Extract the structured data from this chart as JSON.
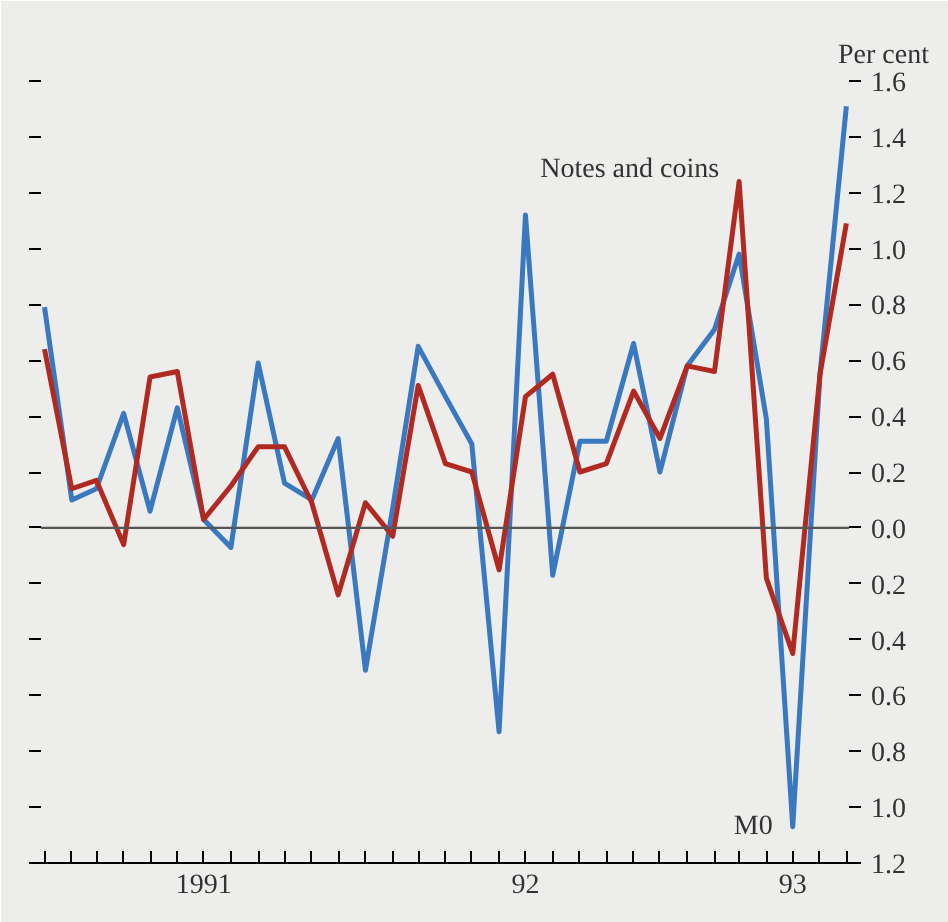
{
  "chart_data": {
    "type": "line",
    "ylabel": "Per cent",
    "x": [
      "1991-01",
      "1991-02",
      "1991-03",
      "1991-04",
      "1991-05",
      "1991-06",
      "1991-07",
      "1991-08",
      "1991-09",
      "1991-10",
      "1991-11",
      "1991-12",
      "1992-01",
      "1992-02",
      "1992-03",
      "1992-04",
      "1992-05",
      "1992-06",
      "1992-07",
      "1992-08",
      "1992-09",
      "1992-10",
      "1992-11",
      "1992-12",
      "1993-01",
      "1993-02",
      "1993-03",
      "1993-04",
      "1993-05",
      "1993-06",
      "1993-07"
    ],
    "series": [
      {
        "name": "M0",
        "color": "#3a78c0",
        "values": [
          0.79,
          0.1,
          0.14,
          0.41,
          0.06,
          0.43,
          0.03,
          -0.07,
          0.59,
          0.16,
          0.1,
          0.32,
          -0.51,
          0.07,
          0.65,
          0.47,
          0.3,
          -0.73,
          1.12,
          -0.17,
          0.31,
          0.31,
          0.66,
          0.2,
          0.58,
          0.71,
          0.98,
          0.39,
          -1.07,
          0.55,
          1.51
        ]
      },
      {
        "name": "Notes and coins",
        "color": "#b02a22",
        "values": [
          0.64,
          0.14,
          0.17,
          -0.06,
          0.54,
          0.56,
          0.03,
          0.15,
          0.29,
          0.29,
          0.09,
          -0.24,
          0.09,
          -0.03,
          0.51,
          0.23,
          0.2,
          -0.15,
          0.47,
          0.55,
          0.2,
          0.23,
          0.49,
          0.32,
          0.58,
          0.56,
          1.24,
          -0.18,
          -0.45,
          0.55,
          1.09
        ]
      }
    ],
    "ref_lines": [
      {
        "axis": "y",
        "value": 0,
        "color": "#555555"
      }
    ],
    "xlim": [
      "1990-12-28",
      "1993-07-04"
    ],
    "xticks": [
      {
        "value": "1991-01",
        "label": null
      },
      {
        "value": "1991-02",
        "label": null
      },
      {
        "value": "1991-03",
        "label": null
      },
      {
        "value": "1991-04",
        "label": null
      },
      {
        "value": "1991-05",
        "label": null
      },
      {
        "value": "1991-06",
        "label": null
      },
      {
        "value": "1991-07",
        "label": "1991"
      },
      {
        "value": "1991-08",
        "label": null
      },
      {
        "value": "1991-09",
        "label": null
      },
      {
        "value": "1991-10",
        "label": null
      },
      {
        "value": "1991-11",
        "label": null
      },
      {
        "value": "1991-12",
        "label": null
      },
      {
        "value": "1992-01",
        "label": null
      },
      {
        "value": "1992-02",
        "label": null
      },
      {
        "value": "1992-03",
        "label": null
      },
      {
        "value": "1992-04",
        "label": null
      },
      {
        "value": "1992-05",
        "label": null
      },
      {
        "value": "1992-06",
        "label": null
      },
      {
        "value": "1992-07",
        "label": "92"
      },
      {
        "value": "1992-08",
        "label": null
      },
      {
        "value": "1992-09",
        "label": null
      },
      {
        "value": "1992-10",
        "label": null
      },
      {
        "value": "1992-11",
        "label": null
      },
      {
        "value": "1992-12",
        "label": null
      },
      {
        "value": "1993-01",
        "label": null
      },
      {
        "value": "1993-02",
        "label": null
      },
      {
        "value": "1993-03",
        "label": null
      },
      {
        "value": "1993-04",
        "label": null
      },
      {
        "value": "1993-05",
        "label": "93"
      },
      {
        "value": "1993-06",
        "label": null
      },
      {
        "value": "1993-07",
        "label": null
      }
    ],
    "ylim": [
      -1.2,
      1.6
    ],
    "yticks": [
      {
        "value": -1.2,
        "label": "1.2"
      },
      {
        "value": -1.0,
        "label": "1.0"
      },
      {
        "value": -0.8,
        "label": "0.8"
      },
      {
        "value": -0.6,
        "label": "0.6"
      },
      {
        "value": -0.4,
        "label": "0.4"
      },
      {
        "value": -0.2,
        "label": "0.2"
      },
      {
        "value": 0,
        "label": "0.0"
      },
      {
        "value": 0.2,
        "label": "0.2"
      },
      {
        "value": 0.4,
        "label": "0.4"
      },
      {
        "value": 0.6,
        "label": "0.6"
      },
      {
        "value": 0.8,
        "label": "0.8"
      },
      {
        "value": 1.0,
        "label": "1.0"
      },
      {
        "value": 1.2,
        "label": "1.2"
      },
      {
        "value": 1.4,
        "label": "1.4"
      },
      {
        "value": 1.6,
        "label": "1.6"
      }
    ],
    "grid": false,
    "marker": "none",
    "line_style": "solid"
  }
}
